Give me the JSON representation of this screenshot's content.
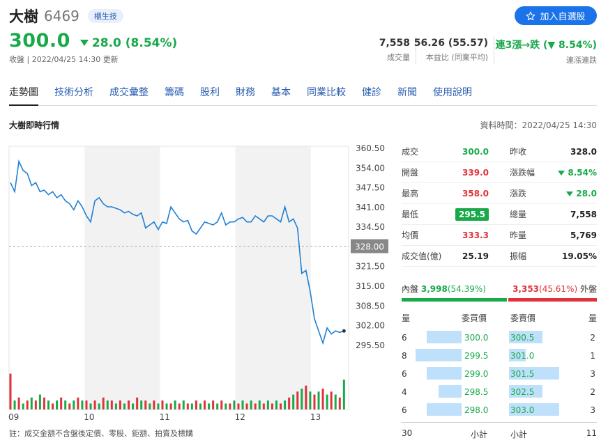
{
  "header": {
    "name": "大樹",
    "code": "6469",
    "badge": "櫃生技",
    "watch_button": "加入自選股",
    "price": "300.0",
    "change": "28.0 (8.54%)",
    "update_line": "收盤 | 2022/04/25 14:30 更新",
    "stats": [
      {
        "value": "7,558",
        "label": "成交量"
      },
      {
        "value": "56.26 (55.57)",
        "label": "本益比 (同業平均)"
      },
      {
        "value": "連3漲→跌 (▼ 8.54%)",
        "label": "連漲連跌"
      }
    ]
  },
  "tabs": [
    "走勢圖",
    "技術分析",
    "成交彙整",
    "籌碼",
    "股利",
    "財務",
    "基本",
    "同業比較",
    "健診",
    "新聞",
    "使用說明"
  ],
  "section": {
    "title": "大樹即時行情",
    "data_time": "資料時間：2022/04/25 14:30"
  },
  "chart_data": {
    "type": "line",
    "x_ticks": [
      "09",
      "10",
      "11",
      "12",
      "13"
    ],
    "y_ticks": [
      360.5,
      354.0,
      347.5,
      341.0,
      334.5,
      328.0,
      321.5,
      315.0,
      308.5,
      302.0,
      295.5
    ],
    "ylim": [
      292,
      361
    ],
    "reference_price": 328.0,
    "series": [
      {
        "values": [
          349,
          346,
          356,
          353,
          352,
          348,
          349,
          346,
          346.5,
          345,
          346,
          344,
          345,
          343,
          342,
          340,
          343,
          341,
          338,
          336,
          343,
          344,
          342,
          341,
          341,
          340.5,
          340,
          339,
          339.5,
          338.5,
          338,
          339,
          334,
          335,
          336,
          333.5,
          336,
          335.5,
          341,
          339,
          337,
          336,
          336.5,
          333,
          332,
          334,
          336,
          335.5,
          335,
          336,
          339,
          335,
          336,
          336,
          337,
          337.5,
          336,
          336,
          338,
          337,
          336,
          338,
          338,
          337,
          336,
          341,
          336,
          337,
          334,
          319,
          320,
          313,
          304,
          300,
          296,
          301,
          299,
          300,
          299.5,
          300
        ]
      }
    ],
    "volume": [
      12,
      3,
      4,
      2,
      3,
      4,
      3,
      5,
      4,
      3,
      2,
      3,
      4,
      3,
      2,
      3,
      4,
      3,
      3,
      2,
      3,
      2,
      4,
      3,
      3,
      2,
      3,
      2,
      3,
      2,
      4,
      3,
      3,
      2,
      3,
      2,
      3,
      2,
      2,
      3,
      2,
      3,
      2,
      2,
      3,
      2,
      3,
      2,
      3,
      2,
      3,
      2,
      2,
      3,
      2,
      3,
      2,
      3,
      2,
      3,
      2,
      3,
      2,
      3,
      2,
      3,
      4,
      5,
      6,
      7,
      8,
      6,
      5,
      6,
      7,
      5,
      6,
      5,
      4,
      10
    ],
    "volume_colors": [
      "red",
      "green"
    ],
    "colors": {
      "line": "#1f7fd4",
      "up": "#e0323a",
      "down": "#18a94a",
      "shade": "#f2f2f2"
    }
  },
  "quote": {
    "rows": [
      {
        "l1": "成交",
        "v1": "300.0",
        "c1": "green",
        "l2": "昨收",
        "v2": "328.0",
        "c2": "dark"
      },
      {
        "l1": "開盤",
        "v1": "339.0",
        "c1": "red",
        "l2": "漲跌幅",
        "v2": "8.54%",
        "c2": "green",
        "tri2": true
      },
      {
        "l1": "最高",
        "v1": "358.0",
        "c1": "red",
        "l2": "漲跌",
        "v2": "28.0",
        "c2": "green",
        "tri2": true
      },
      {
        "l1": "最低",
        "v1": "295.5",
        "c1": "lowbox",
        "l2": "總量",
        "v2": "7,558",
        "c2": "dark"
      },
      {
        "l1": "均價",
        "v1": "333.3",
        "c1": "red",
        "l2": "昨量",
        "v2": "5,769",
        "c2": "dark"
      },
      {
        "l1": "成交值(億)",
        "v1": "25.19",
        "c1": "dark",
        "l2": "振幅",
        "v2": "19.05%",
        "c2": "dark"
      }
    ]
  },
  "inout": {
    "in_label": "內盤",
    "in_value": "3,998",
    "in_pct": "(54.39%)",
    "out_value": "3,353",
    "out_pct": "(45.61%)",
    "out_label": "外盤",
    "in_share": 0.5439
  },
  "orderbook": {
    "headers": {
      "bid_qty": "量",
      "bid_price": "委買價",
      "ask_price": "委賣價",
      "ask_qty": "量"
    },
    "rows": [
      {
        "bid_qty": "6",
        "bid": "300.0",
        "ask": "300.5",
        "ask_qty": "2"
      },
      {
        "bid_qty": "8",
        "bid": "299.5",
        "ask": "301.0",
        "ask_qty": "1"
      },
      {
        "bid_qty": "6",
        "bid": "299.0",
        "ask": "301.5",
        "ask_qty": "3"
      },
      {
        "bid_qty": "4",
        "bid": "298.5",
        "ask": "302.5",
        "ask_qty": "2"
      },
      {
        "bid_qty": "6",
        "bid": "298.0",
        "ask": "303.0",
        "ask_qty": "3"
      }
    ],
    "bid_total": "30",
    "ask_total": "11",
    "subtotal_label": "小計"
  },
  "note": "註：成交金額不含盤後定價、零股、鉅額、拍賣及標購"
}
